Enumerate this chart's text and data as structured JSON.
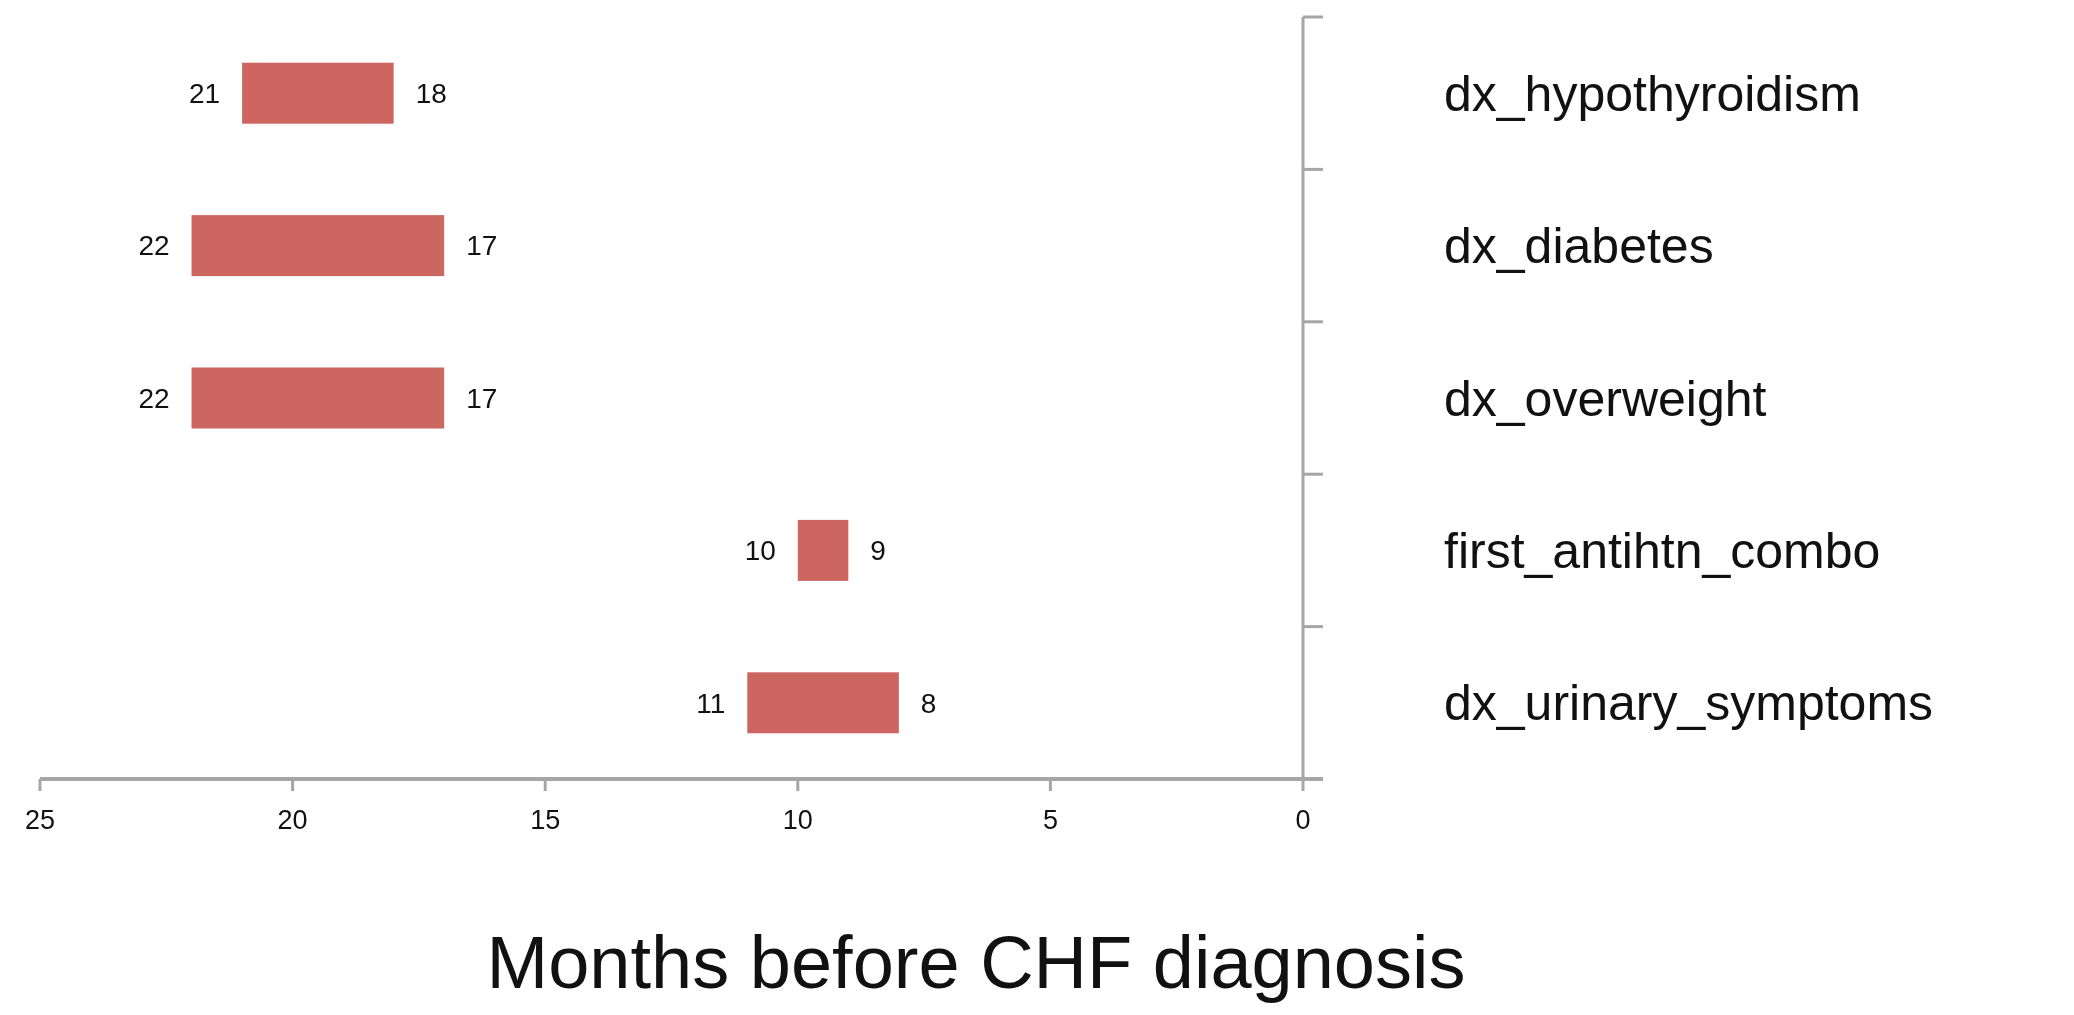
{
  "chart_data": {
    "type": "bar",
    "orientation": "horizontal",
    "xlabel": "Months before CHF diagnosis",
    "categories": [
      "dx_hypothyroidism",
      "dx_diabetes",
      "dx_overweight",
      "first_antihtn_combo",
      "dx_urinary_symptoms"
    ],
    "base": [
      18,
      17,
      17,
      9,
      8
    ],
    "values": [
      3,
      5,
      5,
      1,
      3
    ],
    "color": "#cd6660",
    "xlim": [
      25,
      0
    ],
    "xticks": [
      25,
      20,
      15,
      10,
      5,
      0
    ],
    "grid": false,
    "annotations": [
      {
        "text": "21",
        "x": 21,
        "y": "dx_hypothyroidism"
      },
      {
        "text": "18",
        "x": 18,
        "y": "dx_hypothyroidism"
      },
      {
        "text": "22",
        "x": 22,
        "y": "dx_diabetes"
      },
      {
        "text": "17",
        "x": 17,
        "y": "dx_diabetes"
      },
      {
        "text": "22",
        "x": 22,
        "y": "dx_overweight"
      },
      {
        "text": "17",
        "x": 17,
        "y": "dx_overweight"
      },
      {
        "text": "10",
        "x": 10,
        "y": "first_antihtn_combo"
      },
      {
        "text": "9",
        "x": 9,
        "y": "first_antihtn_combo"
      },
      {
        "text": "11",
        "x": 11,
        "y": "dx_urinary_symptoms"
      },
      {
        "text": "8",
        "x": 8,
        "y": "dx_urinary_symptoms"
      }
    ]
  }
}
